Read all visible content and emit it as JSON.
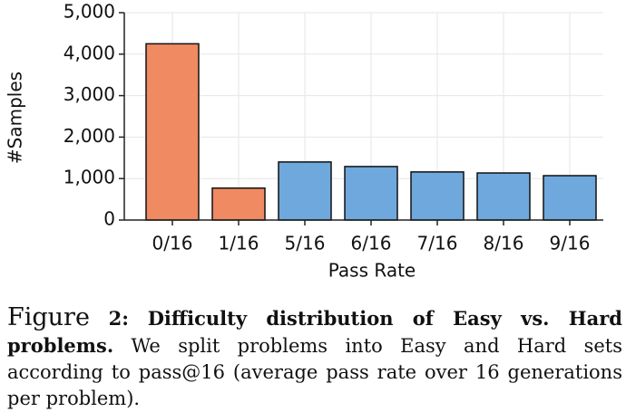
{
  "chart_data": {
    "type": "bar",
    "categories": [
      "0/16",
      "1/16",
      "5/16",
      "6/16",
      "7/16",
      "8/16",
      "9/16"
    ],
    "values": [
      4250,
      770,
      1400,
      1290,
      1160,
      1135,
      1070
    ],
    "colors": [
      "#ef8a62",
      "#ef8a62",
      "#6fa8dc",
      "#6fa8dc",
      "#6fa8dc",
      "#6fa8dc",
      "#6fa8dc"
    ],
    "xlabel": "Pass Rate",
    "ylabel": "#Samples",
    "ylim": [
      0,
      5000
    ],
    "yticks": [
      0,
      {
        "value": 1000,
        "label": "1,000"
      },
      {
        "value": 2000,
        "label": "2,000"
      },
      {
        "value": 3000,
        "label": "3,000"
      },
      {
        "value": 4000,
        "label": "4,000"
      },
      {
        "value": 5000,
        "label": "5,000"
      }
    ],
    "grid": true
  },
  "caption": {
    "label": "Figure",
    "number": "2:",
    "title": "Difficulty distribution of Easy vs. Hard problems.",
    "text": "We split problems into Easy and Hard sets according to pass@16 (average pass rate over 16 generations per problem)."
  }
}
